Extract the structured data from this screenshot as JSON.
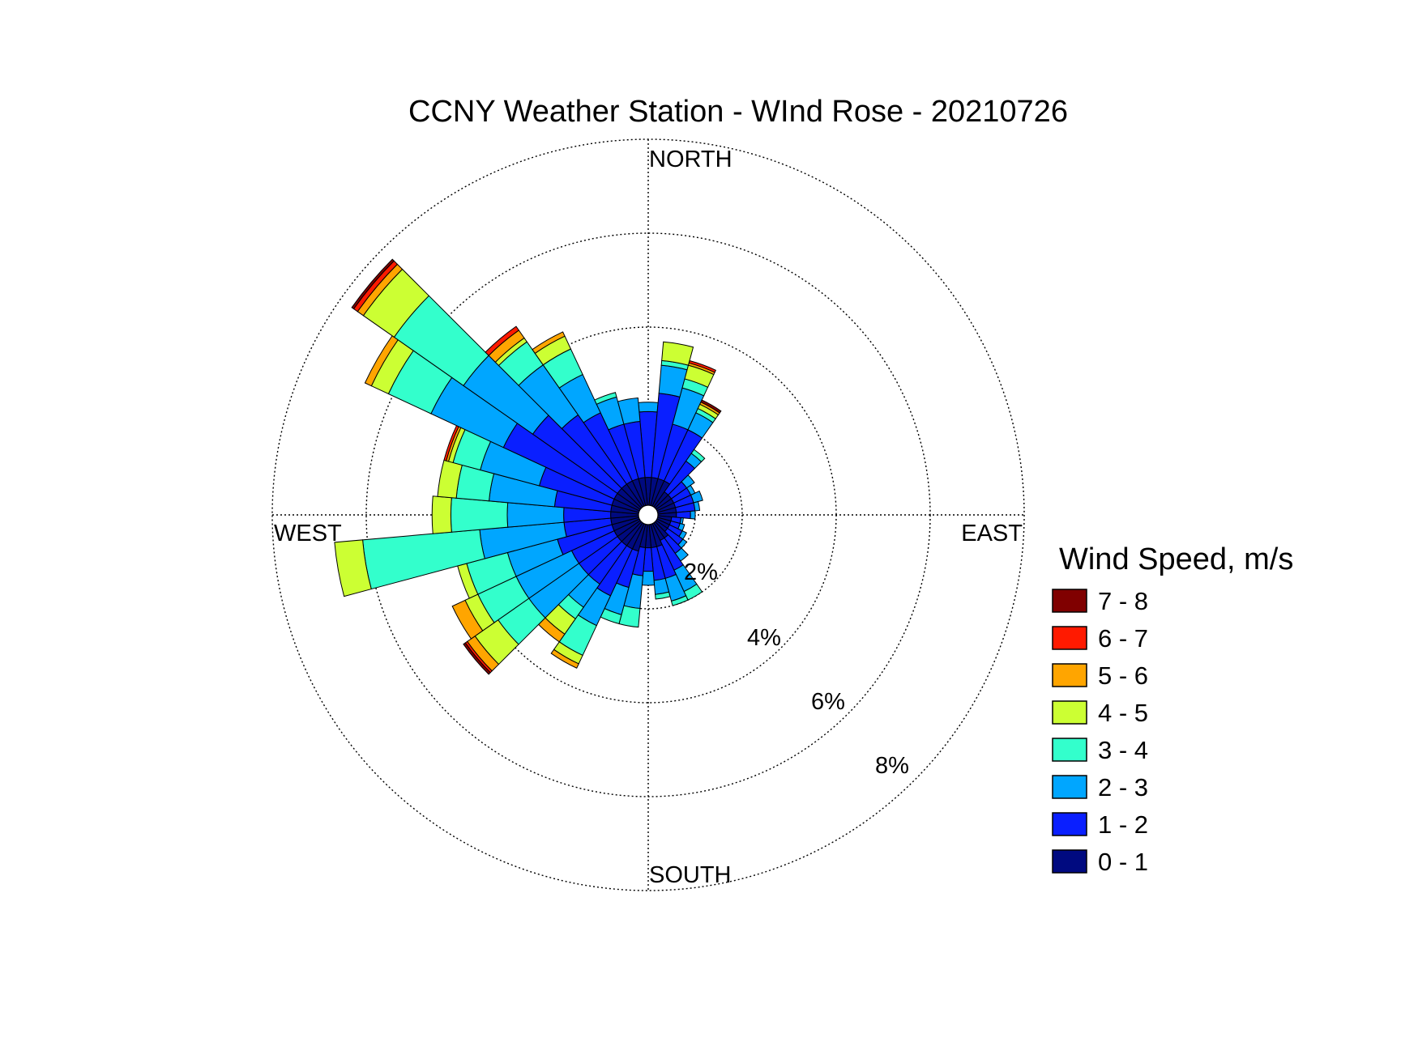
{
  "chart_data": {
    "type": "polar-bar",
    "subtype": "wind-rose-stacked",
    "title": "CCNY Weather Station - WInd Rose - 20210726",
    "direction_labels": {
      "north": "NORTH",
      "south": "SOUTH",
      "east": "EAST",
      "west": "WEST"
    },
    "radial_ticks": [
      "2%",
      "4%",
      "6%",
      "8%"
    ],
    "radial_tick_values": [
      2,
      4,
      6,
      8
    ],
    "rlim": [
      0,
      8
    ],
    "grid": true,
    "legend": {
      "title": "Wind Speed, m/s",
      "placement": "right",
      "items": [
        {
          "label": "7 - 8",
          "color": "#800000"
        },
        {
          "label": "6 - 7",
          "color": "#ff1a00"
        },
        {
          "label": "5 - 6",
          "color": "#ffa500"
        },
        {
          "label": "4 - 5",
          "color": "#ccff33"
        },
        {
          "label": "3 - 4",
          "color": "#33ffcc"
        },
        {
          "label": "2 - 3",
          "color": "#00a6ff"
        },
        {
          "label": "1 - 2",
          "color": "#0a1fff"
        },
        {
          "label": "0 - 1",
          "color": "#000a80"
        }
      ]
    },
    "series_colors": [
      "#000a80",
      "#0a1fff",
      "#00a6ff",
      "#33ffcc",
      "#ccff33",
      "#ffa500",
      "#ff1a00",
      "#800000"
    ],
    "sector_width_deg": 10,
    "sectors": [
      {
        "dir": 0,
        "cum": [
          0.8,
          2.2,
          2.4,
          2.4,
          2.4,
          2.4,
          2.4,
          2.4
        ]
      },
      {
        "dir": 10,
        "cum": [
          0.8,
          2.6,
          3.2,
          3.3,
          3.7,
          3.7,
          3.7,
          3.7
        ]
      },
      {
        "dir": 20,
        "cum": [
          0.8,
          2.0,
          2.8,
          3.0,
          3.3,
          3.35,
          3.4,
          3.4
        ]
      },
      {
        "dir": 30,
        "cum": [
          0.8,
          2.0,
          2.4,
          2.5,
          2.6,
          2.65,
          2.65,
          2.7
        ]
      },
      {
        "dir": 40,
        "cum": [
          0.6,
          1.4,
          1.6,
          1.7,
          1.7,
          1.7,
          1.7,
          1.7
        ]
      },
      {
        "dir": 50,
        "cum": [
          0.6,
          1.0,
          1.2,
          1.2,
          1.2,
          1.2,
          1.2,
          1.2
        ]
      },
      {
        "dir": 60,
        "cum": [
          0.6,
          1.0,
          1.1,
          1.1,
          1.1,
          1.1,
          1.1,
          1.1
        ]
      },
      {
        "dir": 70,
        "cum": [
          0.6,
          1.0,
          1.2,
          1.2,
          1.2,
          1.2,
          1.2,
          1.2
        ]
      },
      {
        "dir": 80,
        "cum": [
          0.6,
          1.0,
          1.1,
          1.1,
          1.1,
          1.1,
          1.1,
          1.1
        ]
      },
      {
        "dir": 90,
        "cum": [
          0.6,
          0.9,
          1.0,
          1.0,
          1.0,
          1.0,
          1.0,
          1.0
        ]
      },
      {
        "dir": 100,
        "cum": [
          0.5,
          0.7,
          0.75,
          0.75,
          0.75,
          0.75,
          0.75,
          0.75
        ]
      },
      {
        "dir": 110,
        "cum": [
          0.5,
          0.7,
          0.8,
          0.8,
          0.8,
          0.8,
          0.8,
          0.8
        ]
      },
      {
        "dir": 120,
        "cum": [
          0.5,
          0.8,
          0.9,
          0.9,
          0.9,
          0.9,
          0.9,
          0.9
        ]
      },
      {
        "dir": 130,
        "cum": [
          0.5,
          0.9,
          1.0,
          1.0,
          1.0,
          1.0,
          1.0,
          1.0
        ]
      },
      {
        "dir": 140,
        "cum": [
          0.6,
          1.0,
          1.2,
          1.2,
          1.2,
          1.2,
          1.2,
          1.2
        ]
      },
      {
        "dir": 150,
        "cum": [
          0.6,
          1.3,
          1.8,
          2.0,
          2.0,
          2.0,
          2.0,
          2.0
        ]
      },
      {
        "dir": 160,
        "cum": [
          0.7,
          1.4,
          1.9,
          2.0,
          2.0,
          2.0,
          2.0,
          2.0
        ]
      },
      {
        "dir": 170,
        "cum": [
          0.7,
          1.4,
          1.7,
          1.8,
          1.8,
          1.8,
          1.8,
          1.8
        ]
      },
      {
        "dir": 180,
        "cum": [
          0.7,
          1.2,
          1.5,
          1.5,
          1.5,
          1.5,
          1.5,
          1.5
        ]
      },
      {
        "dir": 190,
        "cum": [
          0.7,
          1.3,
          2.0,
          2.4,
          2.4,
          2.4,
          2.4,
          2.4
        ]
      },
      {
        "dir": 200,
        "cum": [
          0.8,
          1.6,
          2.2,
          2.4,
          2.4,
          2.4,
          2.4,
          2.4
        ]
      },
      {
        "dir": 210,
        "cum": [
          0.8,
          1.9,
          2.6,
          3.3,
          3.5,
          3.6,
          3.6,
          3.6
        ]
      },
      {
        "dir": 220,
        "cum": [
          0.8,
          1.8,
          2.4,
          2.7,
          3.1,
          3.3,
          3.3,
          3.3
        ]
      },
      {
        "dir": 230,
        "cum": [
          0.8,
          1.8,
          3.1,
          3.9,
          4.5,
          4.7,
          4.75,
          4.8
        ]
      },
      {
        "dir": 240,
        "cum": [
          0.8,
          1.8,
          3.1,
          4.0,
          4.3,
          4.6,
          4.6,
          4.6
        ]
      },
      {
        "dir": 250,
        "cum": [
          0.8,
          2.0,
          3.1,
          4.0,
          4.2,
          4.2,
          4.2,
          4.2
        ]
      },
      {
        "dir": 260,
        "cum": [
          0.8,
          1.8,
          3.6,
          6.1,
          6.7,
          6.7,
          6.7,
          6.7
        ]
      },
      {
        "dir": 270,
        "cum": [
          0.8,
          1.8,
          3.0,
          4.2,
          4.6,
          4.6,
          4.6,
          4.6
        ]
      },
      {
        "dir": 280,
        "cum": [
          0.8,
          2.0,
          3.4,
          4.1,
          4.5,
          4.5,
          4.5,
          4.5
        ]
      },
      {
        "dir": 290,
        "cum": [
          0.8,
          2.4,
          3.7,
          4.3,
          4.4,
          4.45,
          4.5,
          4.5
        ]
      },
      {
        "dir": 300,
        "cum": [
          0.8,
          3.4,
          5.1,
          6.1,
          6.5,
          6.65,
          6.65,
          6.65
        ]
      },
      {
        "dir": 310,
        "cum": [
          0.8,
          3.0,
          4.8,
          6.6,
          7.4,
          7.55,
          7.65,
          7.7
        ]
      },
      {
        "dir": 320,
        "cum": [
          0.8,
          2.6,
          3.9,
          4.5,
          4.6,
          4.8,
          4.9,
          4.9
        ]
      },
      {
        "dir": 330,
        "cum": [
          0.8,
          2.4,
          3.3,
          3.9,
          4.2,
          4.3,
          4.3,
          4.3
        ]
      },
      {
        "dir": 340,
        "cum": [
          0.8,
          2.0,
          2.6,
          2.7,
          2.7,
          2.7,
          2.7,
          2.7
        ]
      },
      {
        "dir": 350,
        "cum": [
          0.8,
          2.0,
          2.5,
          2.5,
          2.5,
          2.5,
          2.5,
          2.5
        ]
      }
    ]
  }
}
